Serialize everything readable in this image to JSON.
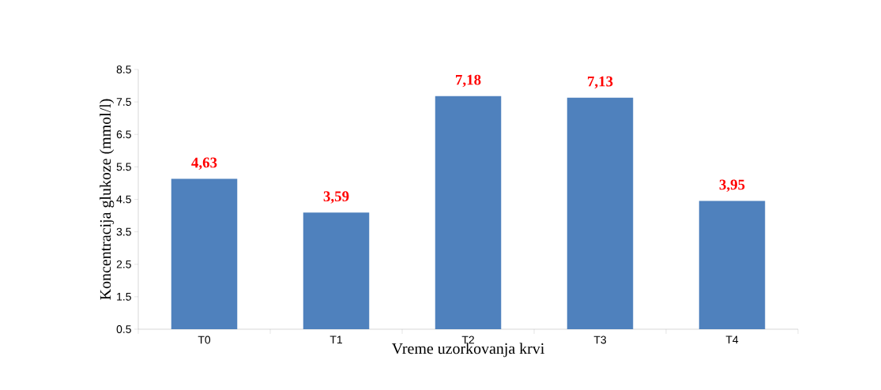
{
  "chart_data": {
    "type": "bar",
    "xlabel": "Vreme uzorkovanja krvi",
    "ylabel": "Koncentracija glukoze (mmol/l)",
    "categories": [
      "T0",
      "T1",
      "T2",
      "T3",
      "T4"
    ],
    "values": [
      4.63,
      3.59,
      7.18,
      7.13,
      3.95
    ],
    "value_labels": [
      "4,63",
      "3,59",
      "7,18",
      "7,13",
      "3,95"
    ],
    "color": "#4f81bd",
    "base": [
      0.5,
      0.5,
      0.5,
      0.5,
      0.5
    ],
    "ylim": [
      0.5,
      8.5
    ],
    "yticks": [
      0.5,
      1.5,
      2.5,
      3.5,
      4.5,
      5.5,
      6.5,
      7.5,
      8.5
    ],
    "grid": false
  }
}
